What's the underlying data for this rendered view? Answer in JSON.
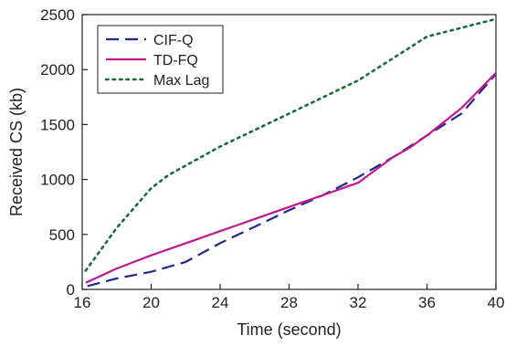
{
  "chart_data": {
    "type": "line",
    "xlabel": "Time (second)",
    "ylabel": "Received CS (kb)",
    "xlim": [
      16,
      40
    ],
    "ylim": [
      0,
      2500
    ],
    "xticks": [
      16,
      20,
      24,
      28,
      32,
      36,
      40
    ],
    "yticks": [
      0,
      500,
      1000,
      1500,
      2000,
      2500
    ],
    "legend_position": "top-left",
    "grid": false,
    "series": [
      {
        "name": "CIF-Q",
        "color": "#1f2a8a",
        "style": "dashed",
        "points": [
          [
            16.3,
            30
          ],
          [
            18,
            100
          ],
          [
            20,
            160
          ],
          [
            22,
            250
          ],
          [
            24,
            420
          ],
          [
            26,
            570
          ],
          [
            28,
            720
          ],
          [
            30,
            860
          ],
          [
            32,
            1020
          ],
          [
            34,
            1200
          ],
          [
            36,
            1400
          ],
          [
            38,
            1600
          ],
          [
            40,
            1960
          ]
        ]
      },
      {
        "name": "TD-FQ",
        "color": "#c2188f",
        "style": "solid",
        "points": [
          [
            16.2,
            60
          ],
          [
            18,
            190
          ],
          [
            20,
            310
          ],
          [
            22,
            420
          ],
          [
            24,
            530
          ],
          [
            26,
            640
          ],
          [
            28,
            750
          ],
          [
            30,
            860
          ],
          [
            32,
            970
          ],
          [
            34,
            1200
          ],
          [
            35,
            1290
          ],
          [
            36,
            1400
          ],
          [
            38,
            1650
          ],
          [
            40,
            1970
          ]
        ]
      },
      {
        "name": "Max Lag",
        "color": "#1a6b3a",
        "style": "dotted",
        "points": [
          [
            16.2,
            170
          ],
          [
            18,
            560
          ],
          [
            20,
            920
          ],
          [
            21,
            1040
          ],
          [
            24,
            1300
          ],
          [
            28,
            1600
          ],
          [
            32,
            1900
          ],
          [
            36,
            2300
          ],
          [
            40,
            2460
          ]
        ]
      }
    ]
  }
}
